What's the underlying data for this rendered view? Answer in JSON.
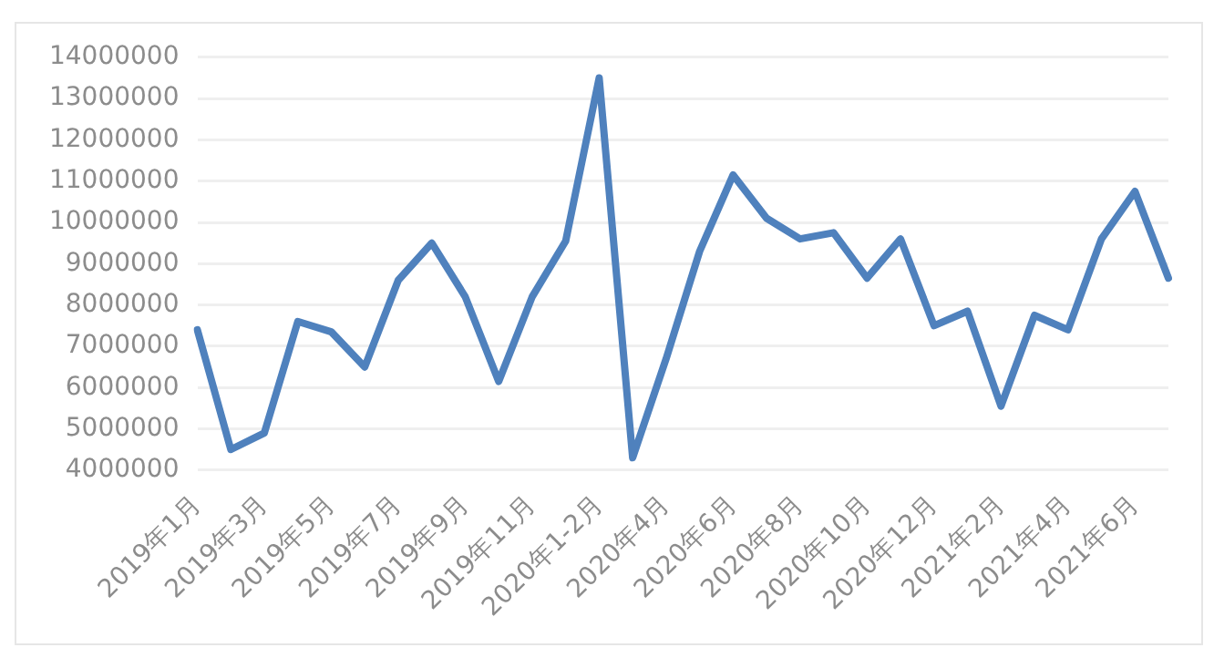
{
  "chart_data": {
    "type": "line",
    "categories": [
      "2019年1月",
      null,
      "2019年3月",
      null,
      "2019年5月",
      null,
      "2019年7月",
      null,
      "2019年9月",
      null,
      "2019年11月",
      null,
      "2020年1-2月",
      null,
      "2020年4月",
      null,
      "2020年6月",
      null,
      "2020年8月",
      null,
      "2020年10月",
      null,
      "2020年12月",
      null,
      "2021年2月",
      null,
      "2021年4月",
      null,
      "2021年6月",
      null
    ],
    "series": [
      {
        "color": "#4f81bd",
        "values": [
          7400000,
          4500000,
          4900000,
          7600000,
          7350000,
          6500000,
          8600000,
          9500000,
          8200000,
          6150000,
          8200000,
          9550000,
          13500000,
          4300000,
          6700000,
          9300000,
          11150000,
          10100000,
          9600000,
          9750000,
          8650000,
          9600000,
          7500000,
          7850000,
          5550000,
          7750000,
          7400000,
          9600000,
          10750000,
          8650000
        ]
      }
    ],
    "ylim": [
      4000000,
      14000000
    ],
    "yticks": [
      4000000,
      5000000,
      6000000,
      7000000,
      8000000,
      9000000,
      10000000,
      11000000,
      12000000,
      13000000,
      14000000
    ],
    "grid": "y",
    "legend": false,
    "marker": "none",
    "line_style": "solid"
  }
}
